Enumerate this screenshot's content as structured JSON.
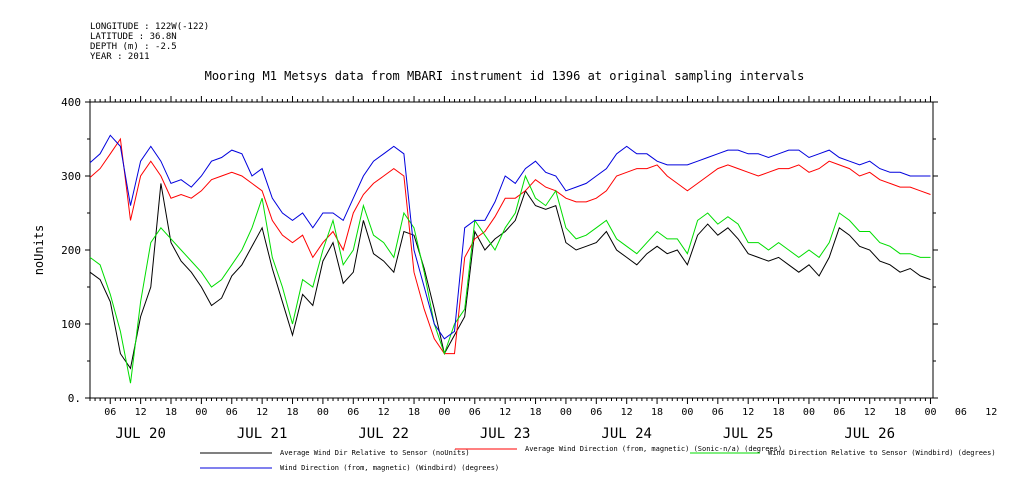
{
  "header": {
    "longitude": "LONGITUDE : 122W(-122)",
    "latitude": "LATITUDE : 36.8N",
    "depth": "DEPTH (m) : -2.5",
    "year": "YEAR : 2011"
  },
  "chart_data": {
    "type": "line",
    "title": "Mooring M1 Metsys data from MBARI instrument id 1396 at original sampling intervals",
    "ylabel": "noUnits",
    "xlabel": "",
    "ylim": [
      0,
      400
    ],
    "yticks": [
      0,
      100,
      200,
      300,
      400
    ],
    "xlim_hours": [
      2,
      168.5
    ],
    "hour_tick_labels": [
      "06",
      "12",
      "18",
      "00",
      "06",
      "12",
      "18",
      "00",
      "06",
      "12",
      "18",
      "00",
      "06",
      "12",
      "18",
      "00",
      "06",
      "12",
      "18",
      "00",
      "06",
      "12",
      "18",
      "00",
      "06",
      "12",
      "18",
      "00",
      "06",
      "12",
      "18",
      "00"
    ],
    "day_labels": [
      "JUL 20",
      "JUL 21",
      "JUL 22",
      "JUL 23",
      "JUL 24",
      "JUL 25",
      "JUL 26"
    ],
    "grid": false,
    "series": [
      {
        "name": "Average Wind Dir Relative to Sensor (noUnits)",
        "color": "#000000",
        "x": [
          2,
          4,
          6,
          8,
          10,
          12,
          14,
          16,
          18,
          20,
          22,
          24,
          26,
          28,
          30,
          32,
          34,
          36,
          38,
          40,
          42,
          44,
          46,
          48,
          50,
          52,
          54,
          56,
          58,
          60,
          62,
          64,
          66,
          68,
          70,
          72,
          74,
          76,
          78,
          80,
          82,
          84,
          86,
          88,
          90,
          92,
          94,
          96,
          98,
          100,
          102,
          104,
          106,
          108,
          110,
          112,
          114,
          116,
          118,
          120,
          122,
          124,
          126,
          128,
          130,
          132,
          134,
          136,
          138,
          140,
          142,
          144,
          146,
          148,
          150,
          152,
          154,
          156,
          158,
          160,
          162,
          164,
          166,
          168
        ],
        "y": [
          170,
          160,
          130,
          60,
          40,
          110,
          150,
          290,
          210,
          185,
          170,
          150,
          125,
          135,
          165,
          180,
          205,
          230,
          175,
          130,
          85,
          140,
          125,
          185,
          210,
          155,
          170,
          240,
          195,
          185,
          170,
          225,
          220,
          175,
          120,
          60,
          85,
          110,
          225,
          200,
          215,
          225,
          240,
          280,
          260,
          255,
          260,
          210,
          200,
          205,
          210,
          225,
          200,
          190,
          180,
          195,
          205,
          195,
          200,
          180,
          220,
          235,
          220,
          230,
          215,
          195,
          190,
          185,
          190,
          180,
          170,
          180,
          165,
          190,
          230,
          220,
          205,
          200,
          185,
          180,
          170,
          175,
          165,
          160
        ]
      },
      {
        "name": "Average Wind Direction (from, magnetic) (Sonic-n/a) (degrees)",
        "color": "#ff0000",
        "x": [
          2,
          4,
          6,
          8,
          10,
          12,
          14,
          16,
          18,
          20,
          22,
          24,
          26,
          28,
          30,
          32,
          34,
          36,
          38,
          40,
          42,
          44,
          46,
          48,
          50,
          52,
          54,
          56,
          58,
          60,
          62,
          64,
          66,
          68,
          70,
          72,
          74,
          76,
          78,
          80,
          82,
          84,
          86,
          88,
          90,
          92,
          94,
          96,
          98,
          100,
          102,
          104,
          106,
          108,
          110,
          112,
          114,
          116,
          118,
          120,
          122,
          124,
          126,
          128,
          130,
          132,
          134,
          136,
          138,
          140,
          142,
          144,
          146,
          148,
          150,
          152,
          154,
          156,
          158,
          160,
          162,
          164,
          166,
          168
        ],
        "y": [
          298,
          310,
          330,
          350,
          240,
          300,
          320,
          300,
          270,
          275,
          270,
          280,
          295,
          300,
          305,
          300,
          290,
          280,
          240,
          220,
          210,
          220,
          190,
          210,
          225,
          200,
          250,
          275,
          290,
          300,
          310,
          300,
          170,
          120,
          80,
          60,
          60,
          190,
          215,
          225,
          245,
          270,
          270,
          280,
          295,
          285,
          280,
          270,
          265,
          265,
          270,
          280,
          300,
          305,
          310,
          310,
          315,
          300,
          290,
          280,
          290,
          300,
          310,
          315,
          310,
          305,
          300,
          305,
          310,
          310,
          315,
          305,
          310,
          320,
          315,
          310,
          300,
          305,
          295,
          290,
          285,
          285,
          280,
          275
        ]
      },
      {
        "name": "Wind Direction Relative to Sensor (Windbird) (degrees)",
        "color": "#00dd00",
        "x": [
          2,
          4,
          6,
          8,
          10,
          12,
          14,
          16,
          18,
          20,
          22,
          24,
          26,
          28,
          30,
          32,
          34,
          36,
          38,
          40,
          42,
          44,
          46,
          48,
          50,
          52,
          54,
          56,
          58,
          60,
          62,
          64,
          66,
          68,
          70,
          72,
          74,
          76,
          78,
          80,
          82,
          84,
          86,
          88,
          90,
          92,
          94,
          96,
          98,
          100,
          102,
          104,
          106,
          108,
          110,
          112,
          114,
          116,
          118,
          120,
          122,
          124,
          126,
          128,
          130,
          132,
          134,
          136,
          138,
          140,
          142,
          144,
          146,
          148,
          150,
          152,
          154,
          156,
          158,
          160,
          162,
          164,
          166,
          168
        ],
        "y": [
          190,
          180,
          140,
          90,
          20,
          130,
          210,
          230,
          215,
          200,
          185,
          170,
          150,
          160,
          180,
          200,
          230,
          270,
          190,
          150,
          100,
          160,
          150,
          200,
          240,
          180,
          200,
          260,
          220,
          210,
          190,
          250,
          230,
          170,
          100,
          60,
          100,
          120,
          240,
          220,
          200,
          230,
          250,
          300,
          270,
          260,
          280,
          230,
          215,
          220,
          230,
          240,
          215,
          205,
          195,
          210,
          225,
          215,
          215,
          195,
          240,
          250,
          235,
          245,
          235,
          210,
          210,
          200,
          210,
          200,
          190,
          200,
          190,
          210,
          250,
          240,
          225,
          225,
          210,
          205,
          195,
          195,
          190,
          190
        ]
      },
      {
        "name": "Wind Direction (from, magnetic) (Windbird) (degrees)",
        "color": "#0000dd",
        "x": [
          2,
          4,
          6,
          8,
          10,
          12,
          14,
          16,
          18,
          20,
          22,
          24,
          26,
          28,
          30,
          32,
          34,
          36,
          38,
          40,
          42,
          44,
          46,
          48,
          50,
          52,
          54,
          56,
          58,
          60,
          62,
          64,
          66,
          68,
          70,
          72,
          74,
          76,
          78,
          80,
          82,
          84,
          86,
          88,
          90,
          92,
          94,
          96,
          98,
          100,
          102,
          104,
          106,
          108,
          110,
          112,
          114,
          116,
          118,
          120,
          122,
          124,
          126,
          128,
          130,
          132,
          134,
          136,
          138,
          140,
          142,
          144,
          146,
          148,
          150,
          152,
          154,
          156,
          158,
          160,
          162,
          164,
          166,
          168
        ],
        "y": [
          318,
          330,
          355,
          340,
          260,
          320,
          340,
          320,
          290,
          295,
          285,
          300,
          320,
          325,
          335,
          330,
          300,
          310,
          270,
          250,
          240,
          250,
          230,
          250,
          250,
          240,
          270,
          300,
          320,
          330,
          340,
          330,
          200,
          150,
          100,
          80,
          90,
          230,
          240,
          240,
          265,
          300,
          290,
          310,
          320,
          305,
          300,
          280,
          285,
          290,
          300,
          310,
          330,
          340,
          330,
          330,
          320,
          315,
          315,
          315,
          320,
          325,
          330,
          335,
          335,
          330,
          330,
          325,
          330,
          335,
          335,
          325,
          330,
          335,
          325,
          320,
          315,
          320,
          310,
          305,
          305,
          300,
          300,
          300
        ]
      }
    ],
    "legend_position": "bottom"
  }
}
